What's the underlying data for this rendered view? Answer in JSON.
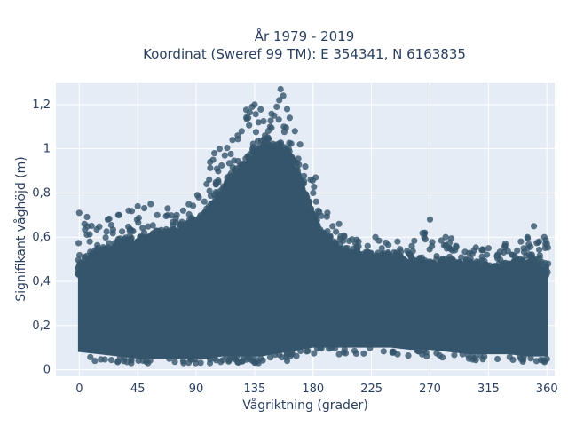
{
  "chart_data": {
    "type": "scatter",
    "title_line1": "År 1979 - 2019",
    "title_line2": "Koordinat (Sweref 99 TM): E 354341, N 6163835",
    "xlabel": "Vågriktning (grader)",
    "ylabel": "Signifikant våghöjd (m)",
    "xlim": [
      -18,
      366
    ],
    "ylim": [
      -0.03,
      1.3
    ],
    "x_ticks": [
      0,
      45,
      90,
      135,
      180,
      225,
      270,
      315,
      360
    ],
    "x_tick_labels": [
      "0",
      "45",
      "90",
      "135",
      "180",
      "225",
      "270",
      "315",
      "360"
    ],
    "y_ticks": [
      0,
      0.2,
      0.4,
      0.6,
      0.8,
      1.0,
      1.2
    ],
    "y_tick_labels": [
      "0",
      "0,2",
      "0,4",
      "0,6",
      "0,8",
      "1",
      "1,2"
    ],
    "grid": true,
    "series": [
      {
        "marker_color": "#34556b",
        "envelope": {
          "direction_deg": [
            0,
            15,
            30,
            45,
            60,
            75,
            90,
            100,
            110,
            120,
            130,
            135,
            140,
            150,
            160,
            170,
            180,
            195,
            210,
            225,
            240,
            255,
            270,
            285,
            300,
            315,
            330,
            345,
            360
          ],
          "dense_upper_m": [
            0.46,
            0.52,
            0.56,
            0.58,
            0.6,
            0.62,
            0.66,
            0.72,
            0.8,
            0.88,
            0.95,
            0.98,
            1.0,
            1.0,
            0.98,
            0.85,
            0.68,
            0.55,
            0.52,
            0.5,
            0.5,
            0.48,
            0.47,
            0.47,
            0.46,
            0.45,
            0.46,
            0.5,
            0.44
          ],
          "dense_lower_m": [
            0.08,
            0.07,
            0.06,
            0.05,
            0.05,
            0.05,
            0.05,
            0.05,
            0.06,
            0.06,
            0.06,
            0.06,
            0.06,
            0.07,
            0.08,
            0.09,
            0.1,
            0.1,
            0.1,
            0.1,
            0.1,
            0.09,
            0.09,
            0.08,
            0.07,
            0.07,
            0.07,
            0.06,
            0.06
          ],
          "max_m": [
            0.71,
            0.67,
            0.7,
            0.74,
            0.75,
            0.73,
            0.78,
            0.98,
            1.04,
            1.1,
            1.2,
            1.2,
            1.18,
            1.27,
            1.15,
            0.95,
            0.87,
            0.65,
            0.6,
            0.6,
            0.6,
            0.58,
            0.68,
            0.6,
            0.57,
            0.56,
            0.58,
            0.65,
            0.6
          ]
        },
        "min_m": 0.03,
        "outliers": [
          [
            0,
            0.71
          ],
          [
            4,
            0.66
          ],
          [
            8,
            0.58
          ],
          [
            22,
            0.68
          ],
          [
            30,
            0.7
          ],
          [
            38,
            0.72
          ],
          [
            45,
            0.74
          ],
          [
            50,
            0.62
          ],
          [
            55,
            0.75
          ],
          [
            60,
            0.7
          ],
          [
            68,
            0.73
          ],
          [
            75,
            0.7
          ],
          [
            80,
            0.72
          ],
          [
            85,
            0.68
          ],
          [
            92,
            0.78
          ],
          [
            98,
            0.84
          ],
          [
            100,
            0.86
          ],
          [
            103,
            0.95
          ],
          [
            104,
            0.98
          ],
          [
            106,
            0.91
          ],
          [
            108,
            1.0
          ],
          [
            112,
            0.97
          ],
          [
            118,
            1.04
          ],
          [
            122,
            1.06
          ],
          [
            125,
            1.08
          ],
          [
            130,
            1.14
          ],
          [
            133,
            1.19
          ],
          [
            135,
            1.2
          ],
          [
            138,
            1.12
          ],
          [
            143,
            1.06
          ],
          [
            147,
            1.1
          ],
          [
            150,
            1.15
          ],
          [
            152,
            1.19
          ],
          [
            154,
            1.22
          ],
          [
            155,
            1.27
          ],
          [
            157,
            1.24
          ],
          [
            160,
            1.18
          ],
          [
            162,
            1.14
          ],
          [
            166,
            1.08
          ],
          [
            170,
            1.02
          ],
          [
            174,
            0.92
          ],
          [
            178,
            0.86
          ],
          [
            180,
            0.8
          ],
          [
            182,
            0.87
          ],
          [
            184,
            0.72
          ],
          [
            188,
            0.62
          ],
          [
            191,
            0.71
          ],
          [
            196,
            0.58
          ],
          [
            200,
            0.66
          ],
          [
            205,
            0.55
          ],
          [
            210,
            0.59
          ],
          [
            215,
            0.58
          ],
          [
            222,
            0.56
          ],
          [
            228,
            0.6
          ],
          [
            233,
            0.55
          ],
          [
            240,
            0.5
          ],
          [
            245,
            0.58
          ],
          [
            250,
            0.5
          ],
          [
            256,
            0.56
          ],
          [
            262,
            0.5
          ],
          [
            266,
            0.62
          ],
          [
            270,
            0.68
          ],
          [
            275,
            0.5
          ],
          [
            282,
            0.6
          ],
          [
            290,
            0.56
          ],
          [
            298,
            0.5
          ],
          [
            305,
            0.48
          ],
          [
            315,
            0.55
          ],
          [
            322,
            0.52
          ],
          [
            328,
            0.57
          ],
          [
            333,
            0.52
          ],
          [
            340,
            0.58
          ],
          [
            345,
            0.6
          ],
          [
            350,
            0.65
          ],
          [
            354,
            0.58
          ],
          [
            358,
            0.6
          ],
          [
            360,
            0.57
          ],
          [
            361,
            0.48
          ],
          [
            12,
            0.04
          ],
          [
            40,
            0.03
          ],
          [
            80,
            0.04
          ],
          [
            138,
            0.03
          ],
          [
            160,
            0.04
          ],
          [
            200,
            0.07
          ],
          [
            300,
            0.05
          ],
          [
            358,
            0.04
          ]
        ]
      }
    ]
  }
}
